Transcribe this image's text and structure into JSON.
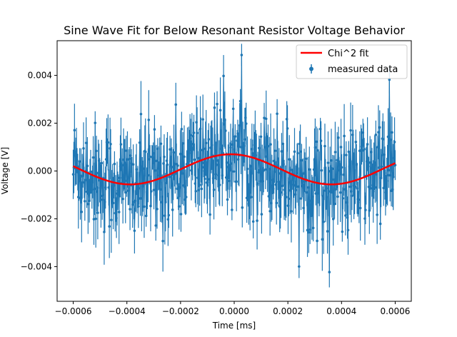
{
  "chart_data": {
    "type": "scatter",
    "title": "Sine Wave Fit for Below Resonant Resistor Voltage Behavior",
    "xlabel": "Time [ms]",
    "ylabel": "Voltage [V]",
    "xlim": [
      -0.00066,
      0.00066
    ],
    "ylim": [
      -0.00545,
      0.00545
    ],
    "x_ticks": [
      -0.0006,
      -0.0004,
      -0.0002,
      0.0,
      0.0002,
      0.0004,
      0.0006
    ],
    "x_tick_labels": [
      "−0.0006",
      "−0.0004",
      "−0.0002",
      "0.0000",
      "0.0002",
      "0.0004",
      "0.0006"
    ],
    "y_ticks": [
      -0.004,
      -0.002,
      0.0,
      0.002,
      0.004
    ],
    "y_tick_labels": [
      "−0.004",
      "−0.002",
      "0.000",
      "0.002",
      "0.004"
    ],
    "grid": false,
    "legend_position": "upper-right",
    "series": [
      {
        "name": "Chi^2 fit",
        "kind": "line",
        "color": "#ff0000",
        "model": "sine",
        "amplitude": 0.00063,
        "period": 0.00075,
        "phase": -0.0002,
        "offset": 7e-05,
        "x_range": [
          -0.0006,
          0.0006
        ]
      },
      {
        "name": "measured data",
        "kind": "errorbar",
        "color": "#1f77b4",
        "n_points": 500,
        "x_range": [
          -0.0006,
          0.0006
        ],
        "noise_std": 0.0011,
        "error_bar_range": [
          0.0004,
          0.0014
        ]
      }
    ]
  }
}
